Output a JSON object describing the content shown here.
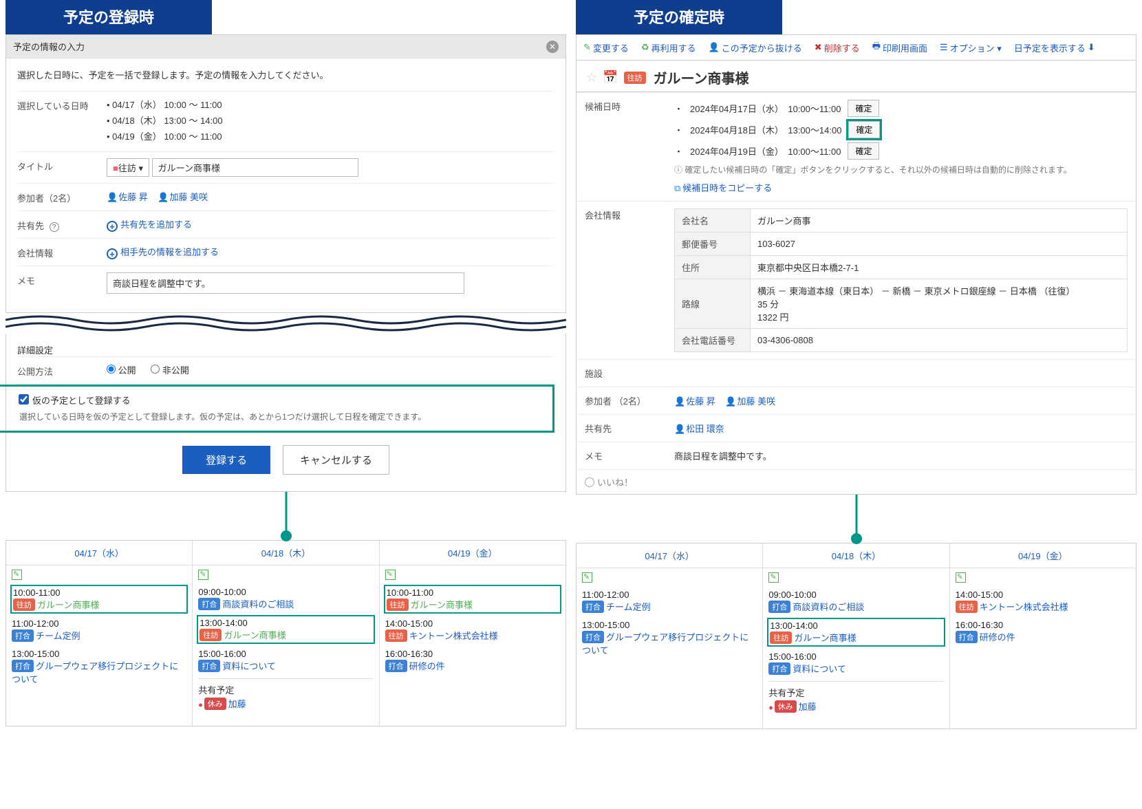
{
  "left": {
    "banner": "予定の登録時",
    "header": "予定の情報の入力",
    "lead": "選択した日時に、予定を一括で登録します。予定の情報を入力してください。",
    "rows": {
      "dates_label": "選択している日時",
      "dates": [
        "04/17（水） 10:00 〜 11:00",
        "04/18（木） 13:00 〜 14:00",
        "04/19（金） 10:00 〜 11:00"
      ],
      "title_label": "タイトル",
      "title_tag_square": "■",
      "title_tag_text": "往訪 ▾",
      "title_value": "ガルーン商事様",
      "participants_label": "参加者（2名）",
      "participants": [
        "佐藤 昇",
        "加藤 美咲"
      ],
      "share_label": "共有先 ",
      "share_add": "共有先を追加する",
      "company_label": "会社情報",
      "company_add": "相手先の情報を追加する",
      "memo_label": "メモ",
      "memo_value": "商談日程を調整中です。"
    },
    "detail_header": "詳細設定",
    "visibility_label": "公開方法",
    "vis_public": "公開",
    "vis_private": "非公開",
    "tentative_label": "仮の予定",
    "tentative_cb": "仮の予定として登録する",
    "tentative_note": "選択している日時を仮の予定として登録します。仮の予定は、あとから1つだけ選択して日程を確定できます。",
    "submit": "登録する",
    "cancel": "キャンセルする"
  },
  "right": {
    "banner": "予定の確定時",
    "toolbar": {
      "edit": "変更する",
      "reuse": "再利用する",
      "leave": "この予定から抜ける",
      "delete": "削除する",
      "print": "印刷用画面",
      "options": "オプション ▾",
      "dayview": "日予定を表示する"
    },
    "title_tag": "往訪",
    "title": "ガルーン商事様",
    "candidates_label": "候補日時",
    "candidates": [
      {
        "text": "2024年04月17日（水）　10:00〜11:00",
        "btn": "確定",
        "hl": false
      },
      {
        "text": "2024年04月18日（木）　13:00〜14:00",
        "btn": "確定",
        "hl": true
      },
      {
        "text": "2024年04月19日（金）　10:00〜11:00",
        "btn": "確定",
        "hl": false
      }
    ],
    "cand_note": "確定したい候補日時の「確定」ボタンをクリックすると、それ以外の候補日時は自動的に削除されます。",
    "cand_copy": "候補日時をコピーする",
    "company_label": "会社情報",
    "company": {
      "name_h": "会社名",
      "name": "ガルーン商事",
      "zip_h": "郵便番号",
      "zip": "103-6027",
      "addr_h": "住所",
      "addr": "東京都中央区日本橋2-7-1",
      "route_h": "路線",
      "route1": "横浜 － 東海道本線（東日本） － 新橋 － 東京メトロ銀座線 － 日本橋 （往復）",
      "route2": "35 分",
      "route3": "1322 円",
      "tel_h": "会社電話番号",
      "tel": "03-4306-0808"
    },
    "facility_label": "施設",
    "participants_label": "参加者 （2名）",
    "participants": [
      "佐藤 昇",
      "加藤 美咲"
    ],
    "share_label": "共有先",
    "share_people": [
      "松田 環奈"
    ],
    "memo_label": "メモ",
    "memo": "商談日程を調整中です。",
    "like": "いいね！"
  },
  "tags": {
    "visit": "往訪",
    "meet": "打合",
    "off": "休み"
  },
  "cal_left": {
    "cols": [
      {
        "date": "04/17（水）",
        "events": [
          {
            "time": "10:00-11:00",
            "tag": "visit",
            "title": "ガルーン商事様",
            "tent": true,
            "hl": true
          },
          {
            "time": "11:00-12:00",
            "tag": "meet",
            "title": "チーム定例"
          },
          {
            "time": "13:00-15:00",
            "tag": "meet",
            "title": "グループウェア移行プロジェクトについて"
          }
        ]
      },
      {
        "date": "04/18（木）",
        "events": [
          {
            "time": "09:00-10:00",
            "tag": "meet",
            "title": "商談資料のご相談"
          },
          {
            "time": "13:00-14:00",
            "tag": "visit",
            "title": "ガルーン商事様",
            "tent": true,
            "hl": true
          },
          {
            "time": "15:00-16:00",
            "tag": "meet",
            "title": "資料について"
          }
        ],
        "shared_header": "共有予定",
        "shared": [
          {
            "tag": "off",
            "title": "加藤"
          }
        ]
      },
      {
        "date": "04/19（金）",
        "events": [
          {
            "time": "10:00-11:00",
            "tag": "visit",
            "title": "ガルーン商事様",
            "tent": true,
            "hl": true
          },
          {
            "time": "14:00-15:00",
            "tag": "visit",
            "title": "キントーン株式会社様"
          },
          {
            "time": "16:00-16:30",
            "tag": "meet",
            "title": "研修の件"
          }
        ]
      }
    ]
  },
  "cal_right": {
    "cols": [
      {
        "date": "04/17（水）",
        "events": [
          {
            "time": "11:00-12:00",
            "tag": "meet",
            "title": "チーム定例"
          },
          {
            "time": "13:00-15:00",
            "tag": "meet",
            "title": "グループウェア移行プロジェクトについて"
          }
        ]
      },
      {
        "date": "04/18（木）",
        "events": [
          {
            "time": "09:00-10:00",
            "tag": "meet",
            "title": "商談資料のご相談"
          },
          {
            "time": "13:00-14:00",
            "tag": "visit",
            "title": "ガルーン商事様",
            "hl": true
          },
          {
            "time": "15:00-16:00",
            "tag": "meet",
            "title": "資料について"
          }
        ],
        "shared_header": "共有予定",
        "shared": [
          {
            "tag": "off",
            "title": "加藤"
          }
        ]
      },
      {
        "date": "04/19（金）",
        "events": [
          {
            "time": "14:00-15:00",
            "tag": "visit",
            "title": "キントーン株式会社様"
          },
          {
            "time": "16:00-16:30",
            "tag": "meet",
            "title": "研修の件"
          }
        ]
      }
    ]
  }
}
